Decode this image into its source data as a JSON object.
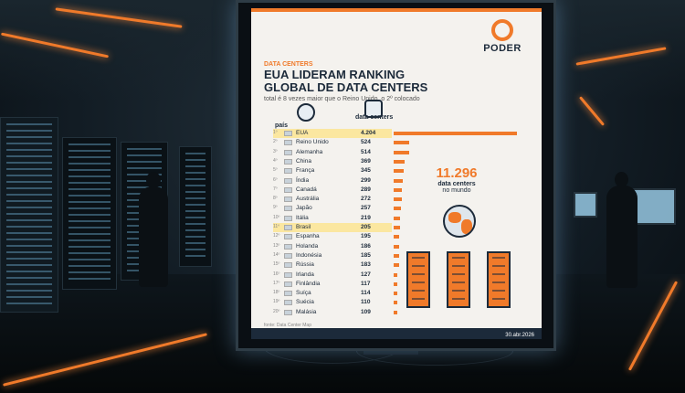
{
  "infographic": {
    "logo": "PODER",
    "tag": "DATA CENTERS",
    "headline_line1": "EUA LIDERAM RANKING",
    "headline_line2": "GLOBAL DE DATA CENTERS",
    "subtitle": "total é 8 vezes maior que o Reino Unido, o 2º colocado",
    "col_country": "país",
    "col_value": "data centers",
    "total_value": "11.296",
    "total_label": "data centers",
    "total_sub": "no mundo",
    "source": "fonte: Data Center Map",
    "date": "30.abr.2026",
    "accent_color": "#f07a2a",
    "rows": [
      {
        "rank": "1º",
        "country": "EUA",
        "value": "4.204",
        "num": 4204,
        "highlight": true
      },
      {
        "rank": "2º",
        "country": "Reino Unido",
        "value": "524",
        "num": 524
      },
      {
        "rank": "3º",
        "country": "Alemanha",
        "value": "514",
        "num": 514
      },
      {
        "rank": "4º",
        "country": "China",
        "value": "369",
        "num": 369
      },
      {
        "rank": "5º",
        "country": "França",
        "value": "345",
        "num": 345
      },
      {
        "rank": "6º",
        "country": "Índia",
        "value": "299",
        "num": 299
      },
      {
        "rank": "7º",
        "country": "Canadá",
        "value": "289",
        "num": 289
      },
      {
        "rank": "8º",
        "country": "Austrália",
        "value": "272",
        "num": 272
      },
      {
        "rank": "9º",
        "country": "Japão",
        "value": "257",
        "num": 257
      },
      {
        "rank": "10º",
        "country": "Itália",
        "value": "219",
        "num": 219
      },
      {
        "rank": "11º",
        "country": "Brasil",
        "value": "205",
        "num": 205,
        "highlight": true
      },
      {
        "rank": "12º",
        "country": "Espanha",
        "value": "195",
        "num": 195
      },
      {
        "rank": "13º",
        "country": "Holanda",
        "value": "186",
        "num": 186
      },
      {
        "rank": "14º",
        "country": "Indonésia",
        "value": "185",
        "num": 185
      },
      {
        "rank": "15º",
        "country": "Rússia",
        "value": "183",
        "num": 183
      },
      {
        "rank": "16º",
        "country": "Irlanda",
        "value": "127",
        "num": 127
      },
      {
        "rank": "17º",
        "country": "Finlândia",
        "value": "117",
        "num": 117
      },
      {
        "rank": "18º",
        "country": "Suíça",
        "value": "114",
        "num": 114
      },
      {
        "rank": "19º",
        "country": "Suécia",
        "value": "110",
        "num": 110
      },
      {
        "rank": "20º",
        "country": "Malásia",
        "value": "109",
        "num": 109
      }
    ]
  }
}
